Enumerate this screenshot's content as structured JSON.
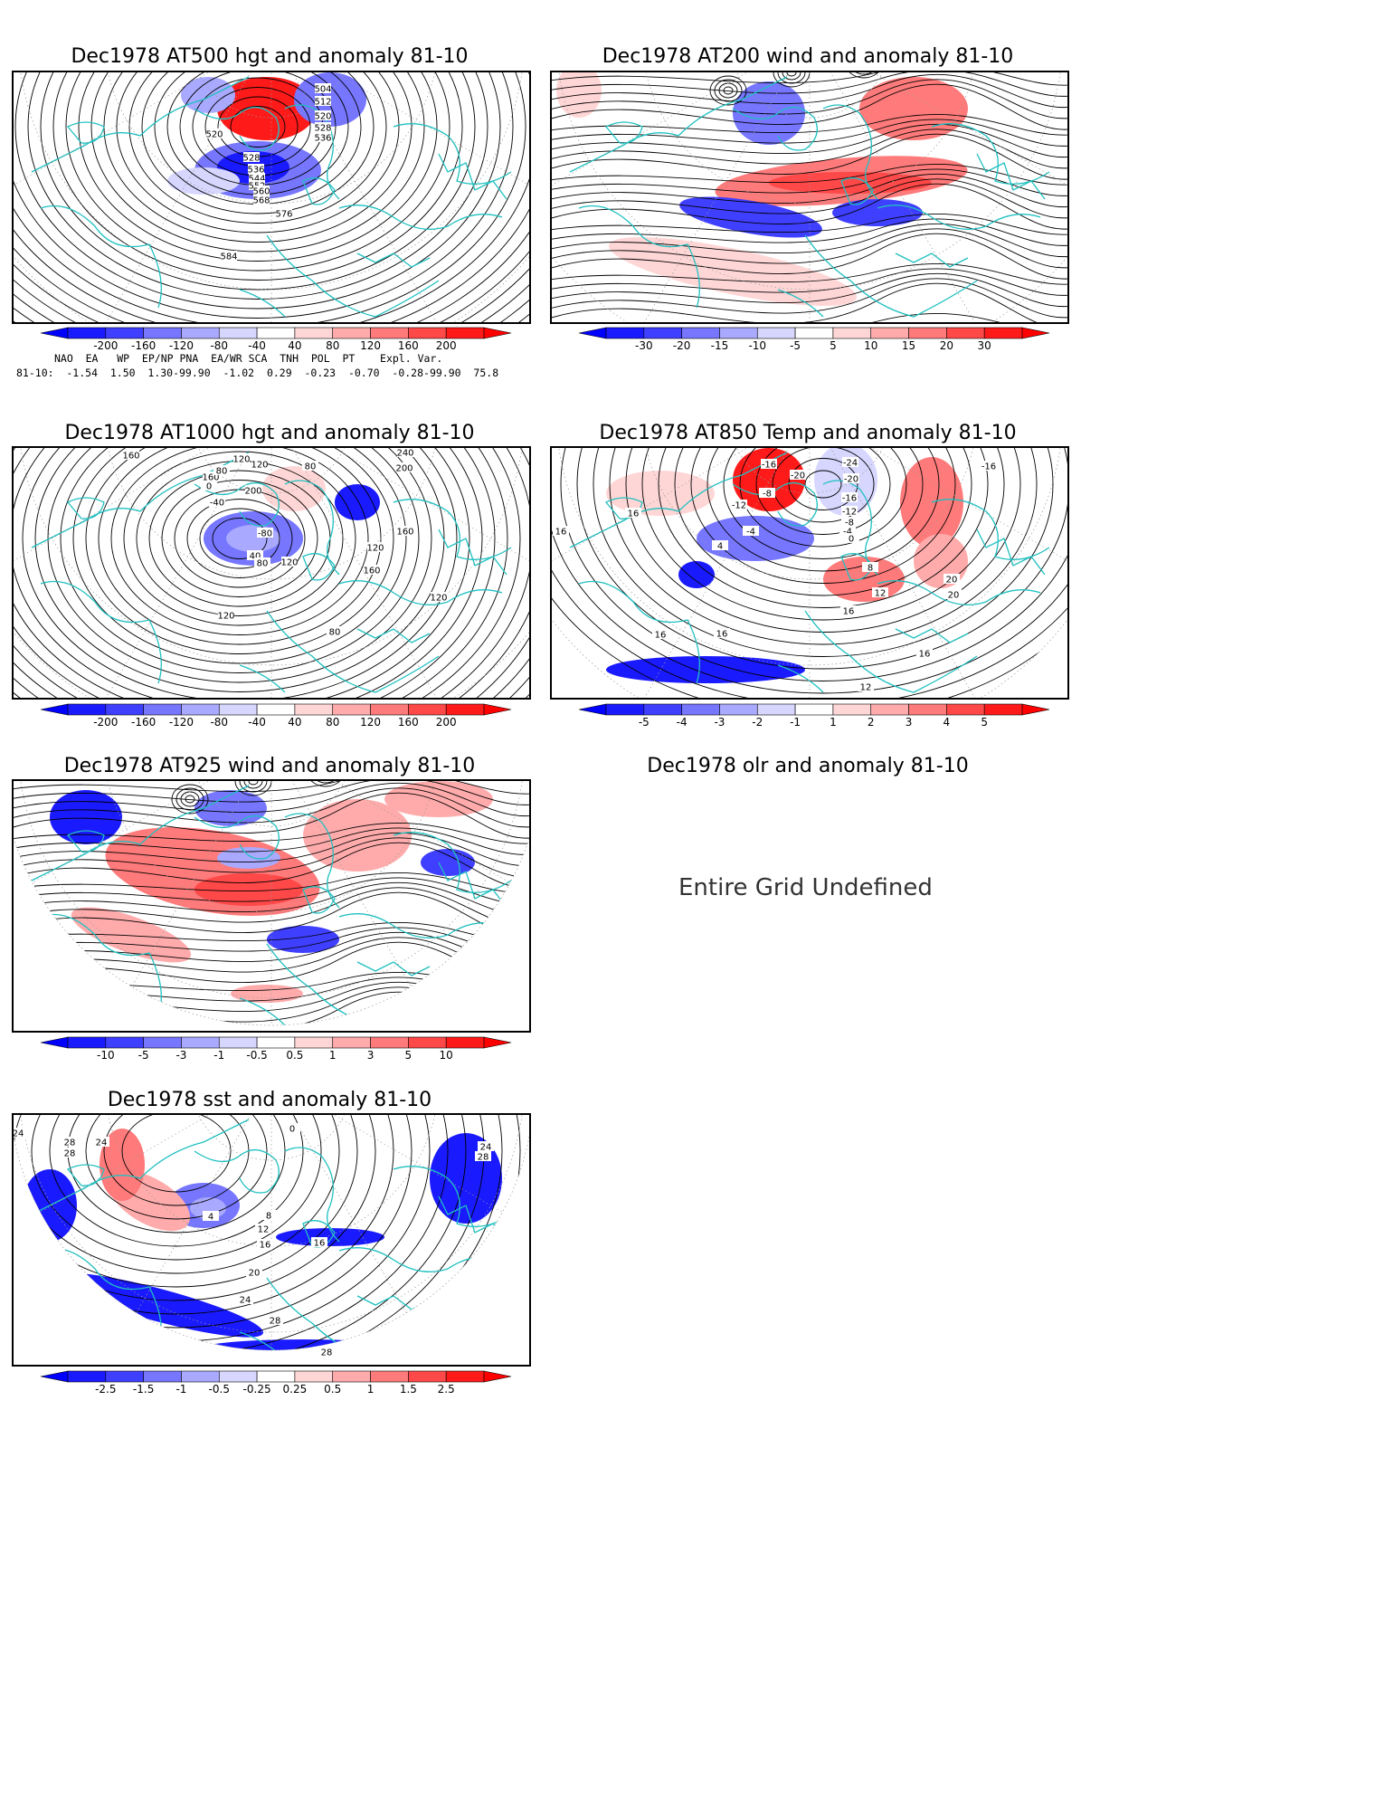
{
  "panels": [
    {
      "id": "at500",
      "title": "Dec1978 AT500 hgt and anomaly 81-10",
      "contour_labels": [
        "504",
        "512",
        "520",
        "528",
        "536",
        "520",
        "528",
        "536",
        "544",
        "552",
        "560",
        "568",
        "576",
        "584"
      ],
      "colorbar": [
        "-200",
        "-160",
        "-120",
        "-80",
        "-40",
        "40",
        "80",
        "120",
        "160",
        "200"
      ]
    },
    {
      "id": "at200",
      "title": "Dec1978 AT200 wind and anomaly 81-10",
      "colorbar": [
        "-30",
        "-20",
        "-15",
        "-10",
        "-5",
        "5",
        "10",
        "15",
        "20",
        "30"
      ]
    },
    {
      "id": "at1000",
      "title": "Dec1978 AT1000 hgt and anomaly 81-10",
      "contour_labels": [
        "160",
        "120",
        "160",
        "80",
        "120",
        "240",
        "200",
        "80",
        "0",
        "200",
        "-40",
        "-80",
        "40",
        "80",
        "120",
        "160",
        "120",
        "160",
        "120",
        "120",
        "80"
      ],
      "colorbar": [
        "-200",
        "-160",
        "-120",
        "-80",
        "-40",
        "40",
        "80",
        "120",
        "160",
        "200"
      ]
    },
    {
      "id": "at850",
      "title": "Dec1978 AT850 Temp and anomaly 81-10",
      "contour_labels": [
        "-16",
        "-20",
        "-24",
        "-20",
        "-8",
        "-12",
        "-16",
        "-12",
        "-8",
        "-4",
        "-4",
        "0",
        "4",
        "-16",
        "16",
        "16",
        "8",
        "12",
        "16",
        "20",
        "20",
        "16",
        "12",
        "16",
        "16"
      ],
      "colorbar": [
        "-5",
        "-4",
        "-3",
        "-2",
        "-1",
        "1",
        "2",
        "3",
        "4",
        "5"
      ]
    },
    {
      "id": "at925",
      "title": "Dec1978 AT925 wind and anomaly 81-10",
      "colorbar": [
        "-10",
        "-5",
        "-3",
        "-1",
        "-0.5",
        "0.5",
        "1",
        "3",
        "5",
        "10"
      ]
    },
    {
      "id": "olr",
      "title": "Dec1978 olr and anomaly 81-10",
      "message": "Entire Grid Undefined"
    },
    {
      "id": "sst",
      "title": "Dec1978 sst and anomaly 81-10",
      "contour_labels": [
        "24",
        "28",
        "24",
        "28",
        "4",
        "8",
        "12",
        "16",
        "16",
        "20",
        "24",
        "28",
        "28",
        "0",
        "24",
        "28"
      ],
      "colorbar": [
        "-2.5",
        "-1.5",
        "-1",
        "-0.5",
        "-0.25",
        "0.25",
        "0.5",
        "1",
        "1.5",
        "2.5"
      ]
    }
  ],
  "teleconnections": {
    "headers": [
      "NAO",
      "EA",
      "WP",
      "EP/NP",
      "PNA",
      "EA/WR",
      "SCA",
      "TNH",
      "POL",
      "PT",
      "Expl. Var."
    ],
    "row_label": "81-10:",
    "values": [
      "-1.54",
      "1.50",
      "1.30-99.90",
      "-1.02",
      "0.29",
      "-0.23",
      "-0.70",
      "-0.28-99.90",
      "75.8"
    ]
  },
  "colors": {
    "coast": "#20c0c0",
    "blue_scale": [
      "#1a1aff",
      "#3f3fff",
      "#7676ff",
      "#a9a9ff",
      "#d6d6ff"
    ],
    "red_scale": [
      "#ffd6d6",
      "#ffabab",
      "#ff7a7a",
      "#ff4848",
      "#ff1a1a"
    ]
  }
}
